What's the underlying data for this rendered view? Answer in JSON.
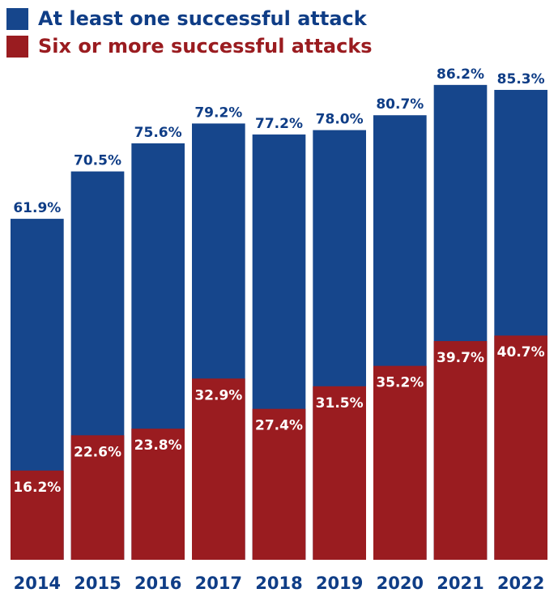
{
  "chart_data": {
    "type": "bar",
    "categories": [
      "2014",
      "2015",
      "2016",
      "2017",
      "2018",
      "2019",
      "2020",
      "2021",
      "2022"
    ],
    "series": [
      {
        "name": "At least one successful attack",
        "values": [
          61.9,
          70.5,
          75.6,
          79.2,
          77.2,
          78.0,
          80.7,
          86.2,
          85.3
        ],
        "labels": [
          "61.9%",
          "70.5%",
          "75.6%",
          "79.2%",
          "77.2%",
          "78.0%",
          "80.7%",
          "86.2%",
          "85.3%"
        ],
        "color": "#16468c"
      },
      {
        "name": "Six or more successful attacks",
        "values": [
          16.2,
          22.6,
          23.8,
          32.9,
          27.4,
          31.5,
          35.2,
          39.7,
          40.7
        ],
        "labels": [
          "16.2%",
          "22.6%",
          "23.8%",
          "32.9%",
          "27.4%",
          "31.5%",
          "35.2%",
          "39.7%",
          "40.7%"
        ],
        "color": "#9a1c20"
      }
    ],
    "title": "",
    "xlabel": "",
    "ylabel": "",
    "ylim": [
      0,
      100
    ],
    "overlapping_bars": true,
    "legend_position": "top-left",
    "grid": false,
    "label_colors": {
      "top": "#0f3d86",
      "inner": "#ffffff",
      "axis": "#0f3d86"
    }
  }
}
